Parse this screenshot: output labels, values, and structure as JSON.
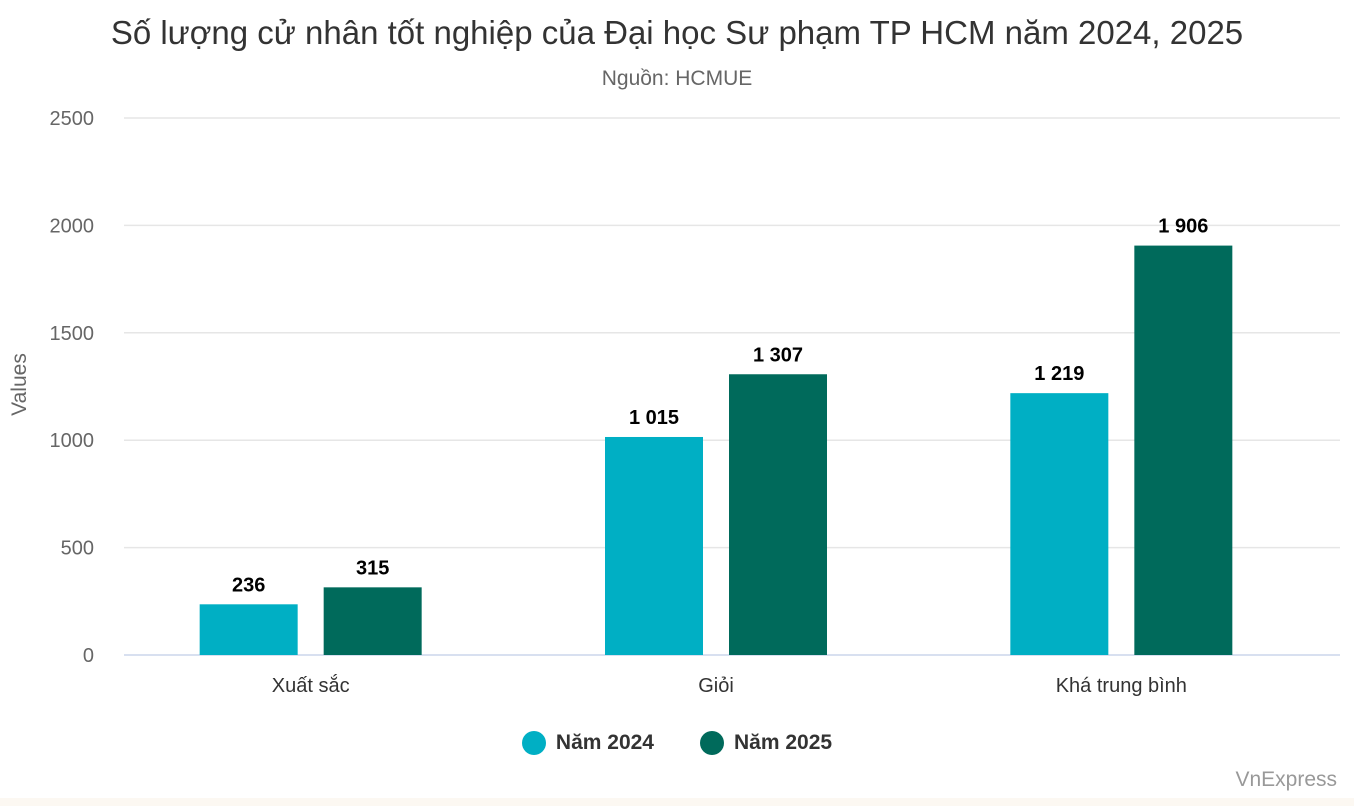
{
  "chart_data": {
    "type": "bar",
    "title": "Số lượng cử nhân tốt nghiệp của Đại học Sư phạm TP HCM năm 2024, 2025",
    "subtitle": "Nguồn: HCMUE",
    "ylabel": "Values",
    "ylim": [
      0,
      2500
    ],
    "yticks": [
      0,
      500,
      1000,
      1500,
      2000,
      2500
    ],
    "categories": [
      "Xuất sắc",
      "Giỏi",
      "Khá trung bình"
    ],
    "series": [
      {
        "name": "Năm 2024",
        "color": "#00afc4",
        "values": [
          236,
          1015,
          1219
        ],
        "labels": [
          "236",
          "1 015",
          "1 219"
        ]
      },
      {
        "name": "Năm 2025",
        "color": "#006a5b",
        "values": [
          315,
          1307,
          1906
        ],
        "labels": [
          "315",
          "1 307",
          "1 906"
        ]
      }
    ],
    "grid": true,
    "legend": "bottom-center"
  },
  "credit": "VnExpress"
}
